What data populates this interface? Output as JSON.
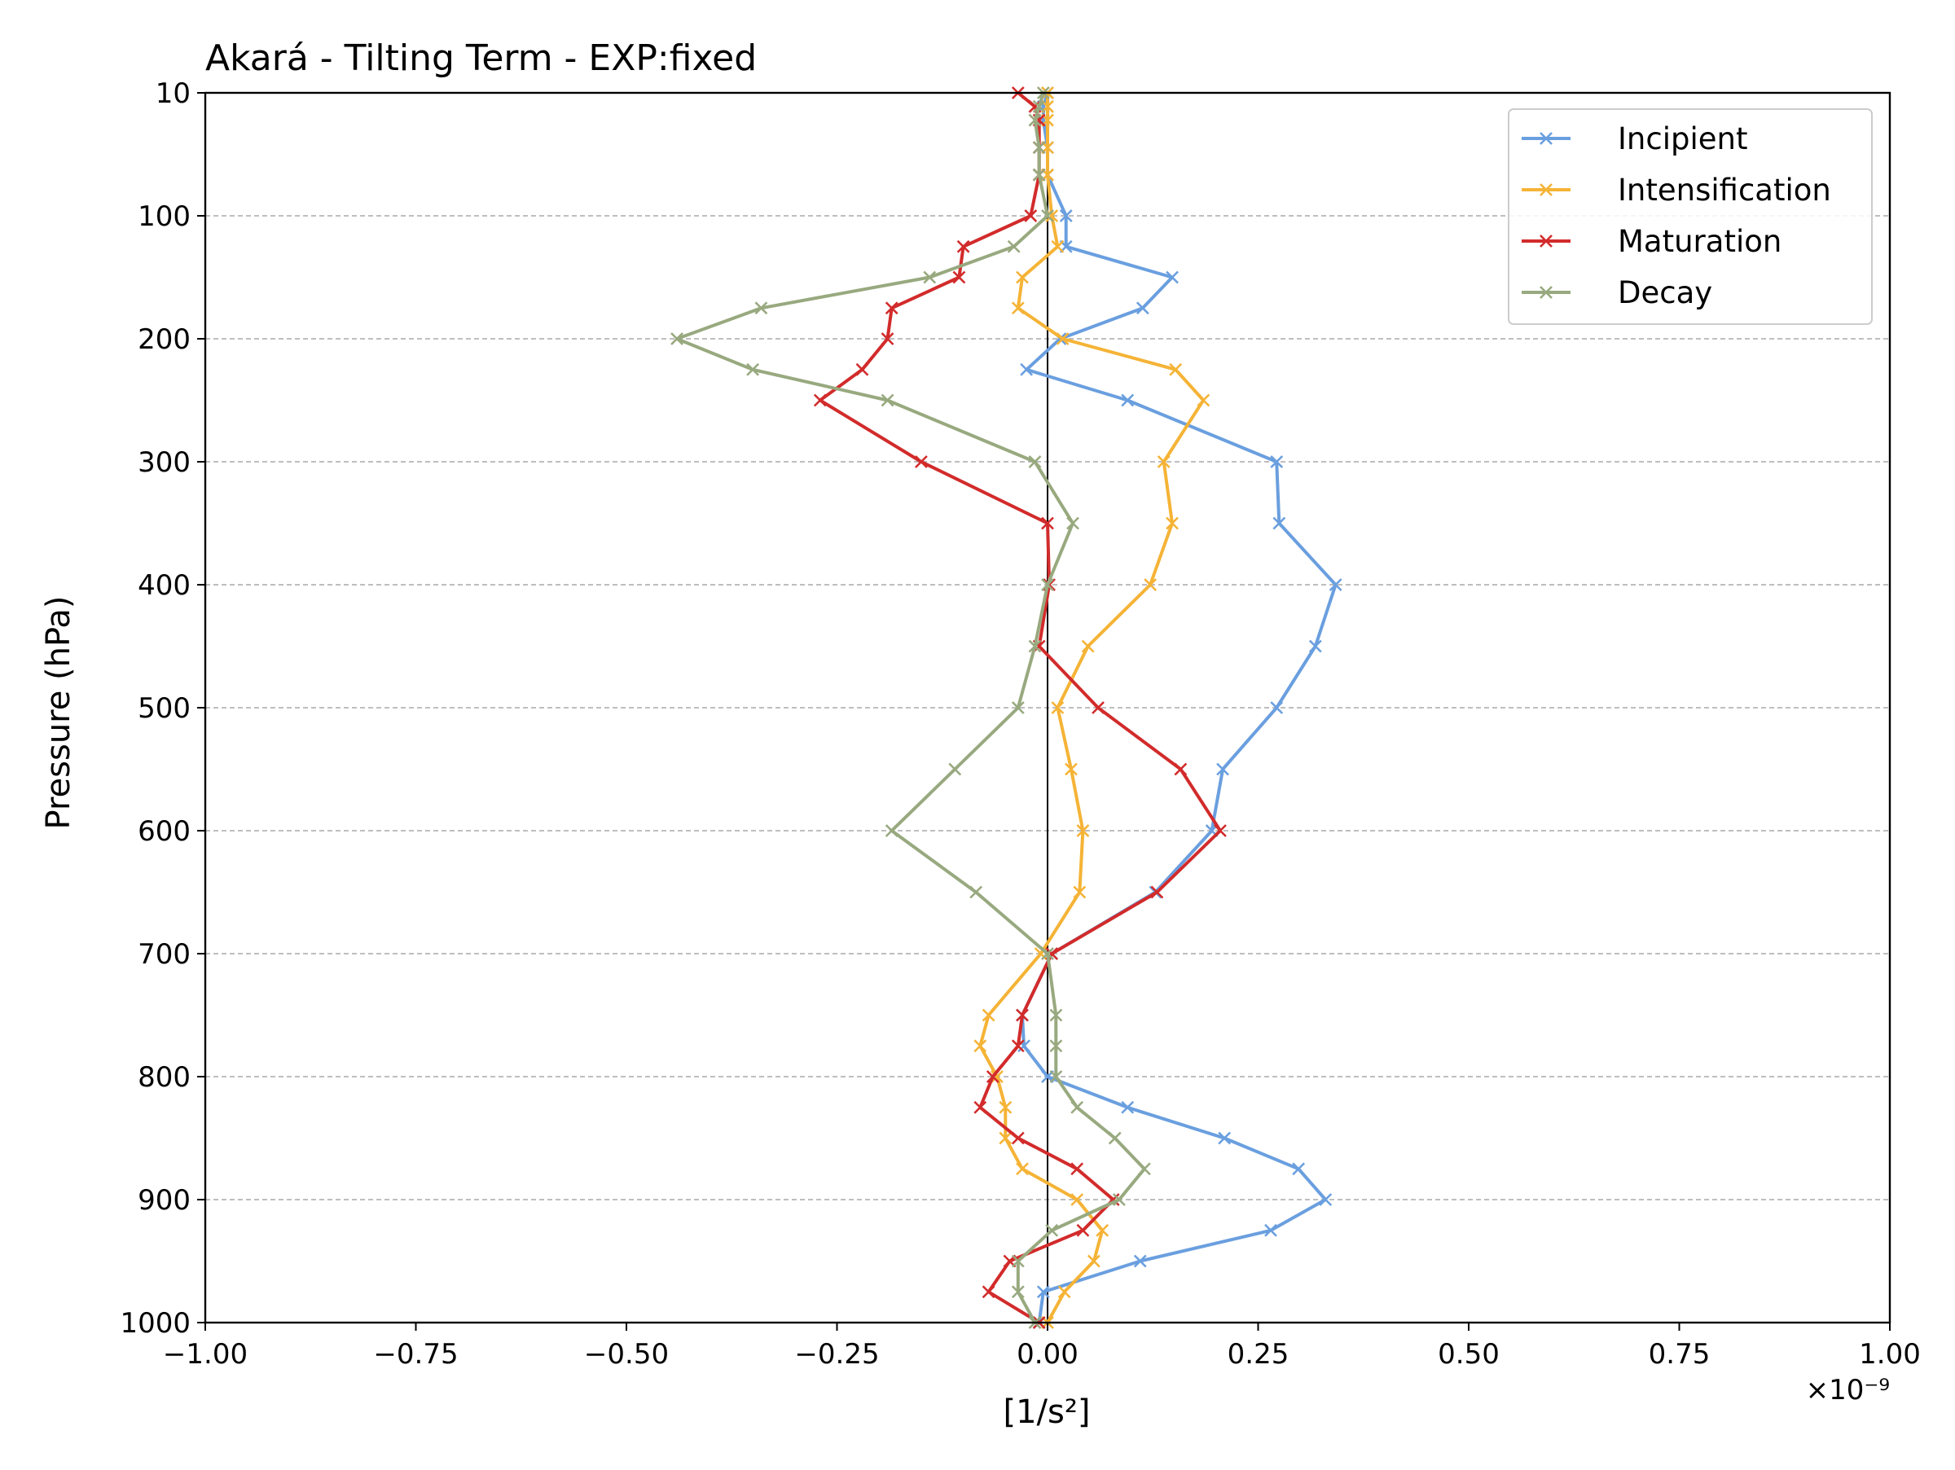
{
  "chart_data": {
    "type": "line",
    "title": "Akará - Tilting Term - EXP:fixed",
    "xlabel": "[1/s²]",
    "ylabel": "Pressure (hPa)",
    "x_offset_label": "×10⁻⁹",
    "xlim": [
      -1.0,
      1.0
    ],
    "ylim": [
      10,
      1000
    ],
    "y_inverted": true,
    "x_ticks": [
      -1.0,
      -0.75,
      -0.5,
      -0.25,
      0.0,
      0.25,
      0.5,
      0.75,
      1.0
    ],
    "x_tick_labels": [
      "−1.00",
      "−0.75",
      "−0.50",
      "−0.25",
      "0.00",
      "0.25",
      "0.50",
      "0.75",
      "1.00"
    ],
    "y_ticks": [
      10,
      100,
      200,
      300,
      400,
      500,
      600,
      700,
      800,
      900,
      1000
    ],
    "y_tick_labels": [
      "10",
      "100",
      "200",
      "300",
      "400",
      "500",
      "600",
      "700",
      "800",
      "900",
      "1000"
    ],
    "grid": "horizontal dashed",
    "zero_line": true,
    "legend_position": "upper right",
    "pressure_levels": [
      10,
      20,
      30,
      50,
      70,
      100,
      125,
      150,
      175,
      200,
      225,
      250,
      300,
      350,
      400,
      450,
      500,
      550,
      600,
      650,
      700,
      750,
      775,
      800,
      825,
      850,
      875,
      900,
      925,
      950,
      975,
      1000
    ],
    "series": [
      {
        "name": "Incipient",
        "color": "#6a9fdf",
        "values": [
          0.0,
          -0.005,
          -0.005,
          0.0,
          0.0,
          0.022,
          0.022,
          0.148,
          0.113,
          0.015,
          -0.025,
          0.095,
          0.272,
          0.275,
          0.342,
          0.318,
          0.272,
          0.208,
          0.195,
          0.128,
          0.005,
          -0.03,
          -0.028,
          0.0,
          0.095,
          0.21,
          0.298,
          0.33,
          0.265,
          0.11,
          -0.005,
          -0.01
        ]
      },
      {
        "name": "Intensification",
        "color": "#f5b336",
        "values": [
          0.0,
          0.0,
          0.0,
          0.0,
          0.0,
          0.005,
          0.012,
          -0.03,
          -0.035,
          0.018,
          0.152,
          0.185,
          0.138,
          0.148,
          0.122,
          0.048,
          0.012,
          0.028,
          0.042,
          0.038,
          -0.008,
          -0.07,
          -0.08,
          -0.06,
          -0.05,
          -0.05,
          -0.03,
          0.035,
          0.065,
          0.055,
          0.02,
          0.0
        ]
      },
      {
        "name": "Maturation",
        "color": "#d22b2b",
        "values": [
          -0.035,
          -0.015,
          -0.01,
          -0.01,
          -0.01,
          -0.02,
          -0.1,
          -0.105,
          -0.185,
          -0.19,
          -0.22,
          -0.27,
          -0.15,
          0.0,
          0.002,
          -0.01,
          0.06,
          0.158,
          0.205,
          0.13,
          0.005,
          -0.03,
          -0.035,
          -0.065,
          -0.08,
          -0.035,
          0.035,
          0.078,
          0.042,
          -0.045,
          -0.07,
          -0.01
        ]
      },
      {
        "name": "Decay",
        "color": "#98a97f",
        "values": [
          -0.005,
          -0.01,
          -0.015,
          -0.01,
          -0.01,
          0.0,
          -0.04,
          -0.14,
          -0.34,
          -0.44,
          -0.35,
          -0.19,
          -0.015,
          0.03,
          0.0,
          -0.015,
          -0.035,
          -0.11,
          -0.185,
          -0.085,
          0.0,
          0.01,
          0.01,
          0.01,
          0.035,
          0.08,
          0.115,
          0.085,
          0.005,
          -0.035,
          -0.035,
          -0.015
        ]
      }
    ]
  }
}
